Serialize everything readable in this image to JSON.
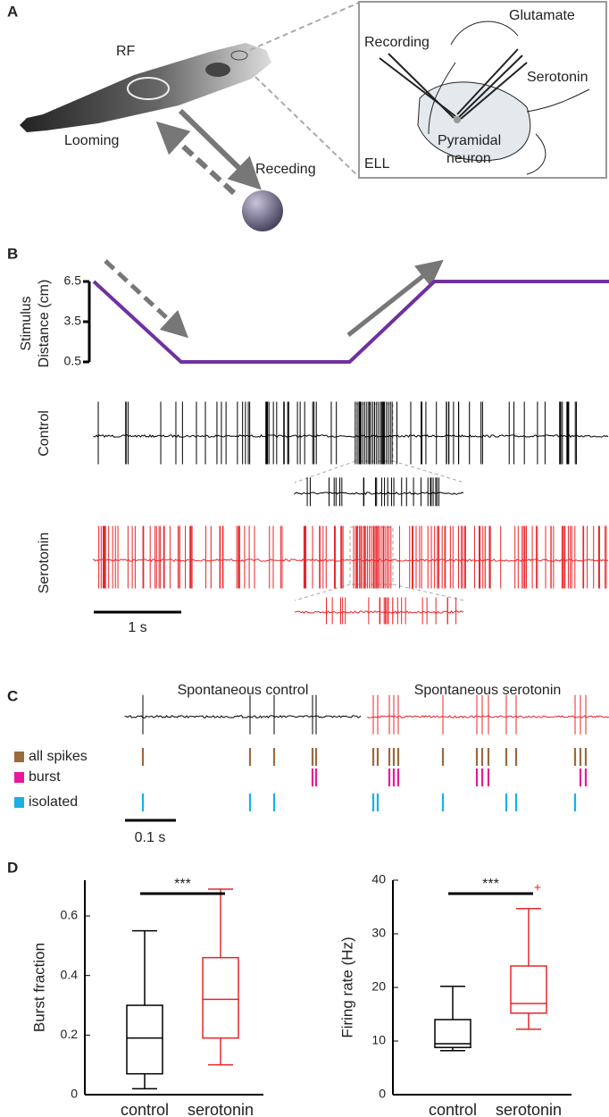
{
  "panel_a": {
    "label": "A",
    "rf": "RF",
    "looming": "Looming",
    "receding": "Receding",
    "glutamate": "Glutamate",
    "recording": "Recording",
    "serotonin": "Serotonin",
    "pyramidal": "Pyramidal",
    "neuron": "neuron",
    "ell": "ELL"
  },
  "panel_b": {
    "label": "B",
    "control": "Control",
    "serotonin": "Serotonin",
    "scale": "1 s"
  },
  "panel_c": {
    "label": "C",
    "title_control": "Spontaneous control",
    "title_serotonin": "Spontaneous serotonin",
    "legend": [
      {
        "name": "all spikes",
        "color": "#9b6a3c"
      },
      {
        "name": "burst",
        "color": "#e8199b"
      },
      {
        "name": "isolated",
        "color": "#1ab0e6"
      }
    ],
    "scale": "0.1 s"
  },
  "panel_d": {
    "label": "D"
  },
  "chart_data": [
    {
      "type": "line",
      "ylabel_1": "Stimulus",
      "ylabel_2": "Distance (cm)",
      "x": [
        0,
        1,
        2.93,
        3.9,
        5.9
      ],
      "values": [
        6.5,
        0.5,
        0.5,
        6.5,
        6.5
      ],
      "color": "#7030a0",
      "xlim": [
        0,
        5.9
      ],
      "ylim": [
        0.5,
        6.5
      ],
      "yticks": [
        0.5,
        3.5,
        6.5
      ]
    },
    {
      "type": "box",
      "ylabel": "Burst fraction",
      "categories": [
        "control",
        "serotonin"
      ],
      "colors": [
        "#000000",
        "#e8252a"
      ],
      "boxes": [
        {
          "min": 0.02,
          "q1": 0.07,
          "median": 0.19,
          "q3": 0.3,
          "max": 0.55
        },
        {
          "min": 0.1,
          "q1": 0.19,
          "median": 0.32,
          "q3": 0.46,
          "max": 0.69
        }
      ],
      "ylim": [
        0,
        0.72
      ],
      "yticks": [
        0,
        0.2,
        0.4,
        0.6
      ],
      "annotation": "***"
    },
    {
      "type": "box",
      "ylabel": "Firing rate (Hz)",
      "categories": [
        "control",
        "serotonin"
      ],
      "colors": [
        "#000000",
        "#e8252a"
      ],
      "boxes": [
        {
          "min": 8.2,
          "q1": 8.8,
          "median": 9.5,
          "q3": 14,
          "max": 20.2
        },
        {
          "min": 12.2,
          "q1": 15.2,
          "median": 17,
          "q3": 24,
          "max": 34.7,
          "outliers": [
            38.5
          ]
        }
      ],
      "ylim": [
        0,
        40
      ],
      "yticks": [
        0,
        10,
        20,
        30,
        40
      ],
      "annotation": "***"
    }
  ]
}
